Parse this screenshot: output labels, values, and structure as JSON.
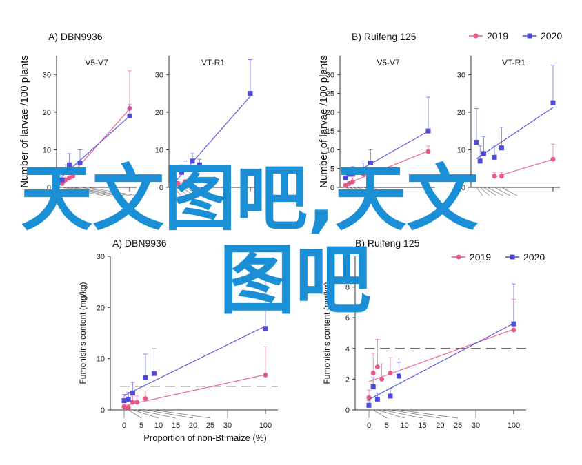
{
  "legend": {
    "entries": [
      {
        "label": "2019",
        "color": "#e8588a",
        "marker": "circle"
      },
      {
        "label": "2020",
        "color": "#4d4bd8",
        "marker": "square"
      }
    ]
  },
  "watermark": {
    "line1": "天文图吧,天文",
    "line2": "图吧",
    "color": "#1a8fd6"
  },
  "chart_data": [
    {
      "type": "line",
      "panel_title": "A)  DBN9936",
      "subplot_title": "V5-V7",
      "ylabel": "Number of larvae /100 plants",
      "xlabel": "",
      "ylim": [
        0,
        35
      ],
      "yticks": [
        0,
        10,
        20,
        30
      ],
      "series": [
        {
          "name": "2019",
          "x": [
            0,
            1,
            2,
            3,
            100
          ],
          "y": [
            1,
            2,
            2.5,
            3,
            21
          ],
          "err": [
            0.5,
            1,
            2,
            1.5,
            10
          ]
        },
        {
          "name": "2020",
          "x": [
            0,
            1,
            2,
            5,
            100
          ],
          "y": [
            2,
            4,
            6,
            6.5,
            19
          ],
          "err": [
            1,
            2,
            3,
            3.5,
            3
          ]
        }
      ]
    },
    {
      "type": "line",
      "panel_title": "",
      "subplot_title": "VT-R1",
      "ylabel": "",
      "xlabel": "",
      "ylim": [
        0,
        35
      ],
      "yticks": [
        0,
        10,
        20,
        30
      ],
      "series": [
        {
          "name": "2019",
          "x": [
            0,
            1,
            3
          ],
          "y": [
            0.5,
            1,
            1.5
          ],
          "err": [
            0.5,
            0.5,
            0.5
          ]
        },
        {
          "name": "2020",
          "x": [
            0,
            2,
            3,
            5,
            7,
            100
          ],
          "y": [
            2,
            4,
            5,
            7,
            6,
            25
          ],
          "err": [
            1,
            2,
            2,
            2,
            1.5,
            9
          ]
        }
      ]
    },
    {
      "type": "line",
      "panel_title": "B)  Ruifeng 125",
      "subplot_title": "V5-V7",
      "ylabel": "Number of larvae /100 plants",
      "xlabel": "",
      "ylim": [
        0,
        35
      ],
      "yticks": [
        0,
        5,
        10,
        15,
        20,
        25,
        30
      ],
      "series": [
        {
          "name": "2019",
          "x": [
            0,
            1,
            2,
            5,
            100
          ],
          "y": [
            0.5,
            1,
            1.5,
            3.5,
            9.5
          ],
          "err": [
            0.5,
            0.5,
            1,
            1.5,
            1.5
          ]
        },
        {
          "name": "2020",
          "x": [
            0,
            1,
            2,
            5,
            7,
            100
          ],
          "y": [
            2.5,
            3.5,
            3.5,
            4.5,
            6.5,
            15
          ],
          "err": [
            1,
            1,
            2,
            2,
            3.5,
            9
          ]
        }
      ]
    },
    {
      "type": "line",
      "panel_title": "",
      "subplot_title": "VT-R1",
      "ylabel": "",
      "xlabel": "",
      "ylim": [
        0,
        35
      ],
      "yticks": [
        0,
        10,
        20,
        30
      ],
      "series": [
        {
          "name": "2019",
          "x": [
            5,
            7,
            100
          ],
          "y": [
            3,
            3,
            7.5
          ],
          "err": [
            1,
            1,
            4
          ]
        },
        {
          "name": "2020",
          "x": [
            0,
            1,
            2,
            5,
            7,
            100
          ],
          "y": [
            12,
            7,
            9,
            8,
            10.5,
            22.5
          ],
          "err": [
            9,
            4,
            4.5,
            3,
            5.5,
            10
          ]
        }
      ]
    },
    {
      "type": "line",
      "panel_title": "A) DBN9936",
      "subplot_title": "",
      "ylabel": "Fumonisins content (mg/kg)",
      "xlabel": "Proportion of non-Bt maize (%)",
      "ylim": [
        0,
        30
      ],
      "yticks": [
        0,
        10,
        20,
        30
      ],
      "xtick_labels": [
        "0",
        "5",
        "10",
        "15",
        "20",
        "25",
        "30",
        "100"
      ],
      "threshold": 4.6,
      "series": [
        {
          "name": "2019",
          "x": [
            0,
            1,
            2,
            3,
            5,
            100
          ],
          "y": [
            0.6,
            0.4,
            1.5,
            1.5,
            2.2,
            6.8
          ],
          "err": [
            0.5,
            0.5,
            1.2,
            1.2,
            1.5,
            5.5
          ]
        },
        {
          "name": "2020",
          "x": [
            0,
            1,
            2,
            5,
            7,
            100
          ],
          "y": [
            1.8,
            2.1,
            3.3,
            6.3,
            7.1,
            15.9
          ],
          "err": [
            1.2,
            1.3,
            2.1,
            4.6,
            4.9,
            10
          ]
        }
      ]
    },
    {
      "type": "line",
      "panel_title": "B) Ruifeng 125",
      "subplot_title": "",
      "ylabel": "Fumonisins content (mg/kg)",
      "xlabel": "",
      "ylim": [
        0,
        10
      ],
      "yticks": [
        0,
        2,
        4,
        6,
        8
      ],
      "xtick_labels": [
        "0",
        "5",
        "10",
        "15",
        "20",
        "25",
        "30",
        "100"
      ],
      "threshold": 4,
      "series": [
        {
          "name": "2019",
          "x": [
            0,
            1,
            2,
            3,
            5,
            100
          ],
          "y": [
            0.8,
            2.4,
            2.8,
            2.0,
            2.4,
            5.2
          ],
          "err": [
            0.5,
            1.3,
            1.8,
            1.0,
            1.0,
            2.0
          ]
        },
        {
          "name": "2020",
          "x": [
            0,
            1,
            2,
            5,
            7,
            100
          ],
          "y": [
            0.3,
            1.5,
            0.7,
            0.9,
            2.2,
            5.6
          ],
          "err": [
            0.3,
            0.6,
            0.4,
            0.5,
            0.9,
            2.6
          ]
        }
      ]
    }
  ]
}
